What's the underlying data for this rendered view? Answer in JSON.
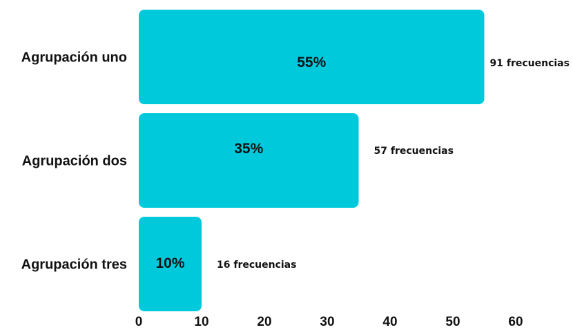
{
  "chart_data": {
    "type": "bar",
    "orientation": "horizontal",
    "categories": [
      "Agrupación uno",
      "Agrupación dos",
      "Agrupación tres"
    ],
    "values": [
      55,
      35,
      10
    ],
    "data_labels": [
      "55%",
      "35%",
      "10%"
    ],
    "annotations": [
      "91 frecuencias",
      "57 frecuencias",
      "16 frecuencias"
    ],
    "xlim": [
      0,
      60
    ],
    "x_ticks": [
      "0",
      "10",
      "20",
      "30",
      "40",
      "50",
      "60"
    ],
    "title": "",
    "xlabel": "",
    "ylabel": "",
    "grid": false,
    "colors": {
      "bar": "#00C9DC"
    }
  }
}
